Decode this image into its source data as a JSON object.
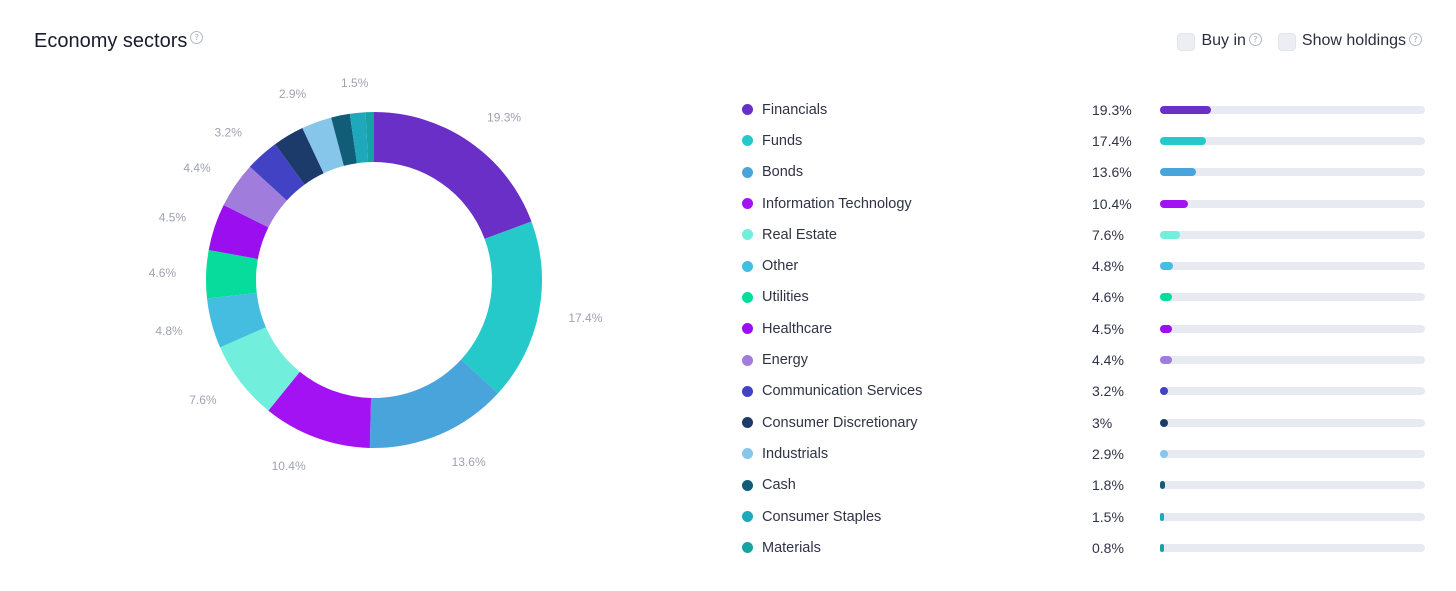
{
  "header": {
    "title": "Economy sectors",
    "help_glyph": "?"
  },
  "toggles": [
    {
      "label": "Buy in",
      "checked": false
    },
    {
      "label": "Show holdings",
      "checked": false
    }
  ],
  "chart_data": {
    "type": "pie",
    "title": "Economy sectors",
    "donut": true,
    "slices": [
      {
        "label": "Financials",
        "value": 19.3,
        "display": "19.3%",
        "color": "#6a2fc6"
      },
      {
        "label": "Funds",
        "value": 17.4,
        "display": "17.4%",
        "color": "#26c9c9"
      },
      {
        "label": "Bonds",
        "value": 13.6,
        "display": "13.6%",
        "color": "#4aa4dc"
      },
      {
        "label": "Information Technology",
        "value": 10.4,
        "display": "10.4%",
        "color": "#a312f2"
      },
      {
        "label": "Real Estate",
        "value": 7.6,
        "display": "7.6%",
        "color": "#72eedc"
      },
      {
        "label": "Other",
        "value": 4.8,
        "display": "4.8%",
        "color": "#44bde0"
      },
      {
        "label": "Utilities",
        "value": 4.6,
        "display": "4.6%",
        "color": "#08dc9c"
      },
      {
        "label": "Healthcare",
        "value": 4.5,
        "display": "4.5%",
        "color": "#9b0ef0"
      },
      {
        "label": "Energy",
        "value": 4.4,
        "display": "4.4%",
        "color": "#a07ddd"
      },
      {
        "label": "Communication Services",
        "value": 3.2,
        "display": "3.2%",
        "color": "#4143c4"
      },
      {
        "label": "Consumer Discretionary",
        "value": 3.0,
        "display": "3%",
        "color": "#1d3b6a"
      },
      {
        "label": "Industrials",
        "value": 2.9,
        "display": "2.9%",
        "color": "#86c6ea"
      },
      {
        "label": "Cash",
        "value": 1.8,
        "display": "1.8%",
        "color": "#115d77"
      },
      {
        "label": "Consumer Staples",
        "value": 1.5,
        "display": "1.5%",
        "color": "#1fa8bc"
      },
      {
        "label": "Materials",
        "value": 0.8,
        "display": "0.8%",
        "color": "#18a3a3"
      }
    ],
    "shown_slice_labels": [
      "19.3%",
      "17.4%",
      "13.6%",
      "10.4%",
      "7.6%",
      "4.8%",
      "4.6%",
      "4.5%",
      "4.4%",
      "3.2%",
      null,
      "2.9%",
      null,
      "1.5%",
      null
    ],
    "bar_scale_max": 100
  }
}
